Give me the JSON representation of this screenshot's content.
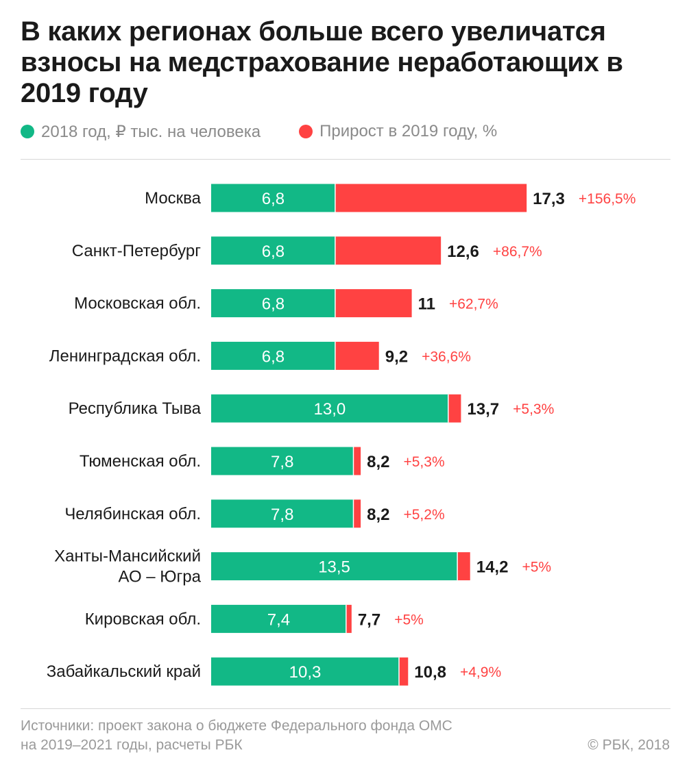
{
  "title": "В каких регионах больше всего увеличатся взносы на медстрахование неработающих в 2019 году",
  "legend": {
    "base_label": "2018 год, ₽ тыс. на человека",
    "growth_label": "Прирост в 2019 году, %"
  },
  "colors": {
    "base": "#12b886",
    "growth": "#ff4242",
    "total_text": "#1a1a1a",
    "pct_text": "#ff4242"
  },
  "chart_data": {
    "type": "bar",
    "orientation": "horizontal",
    "stacked": true,
    "categories": [
      [
        "Москва"
      ],
      [
        "Санкт-Петербург"
      ],
      [
        "Московская обл."
      ],
      [
        "Ленинградская обл."
      ],
      [
        "Республика Тыва"
      ],
      [
        "Тюменская обл."
      ],
      [
        "Челябинская обл."
      ],
      [
        "Ханты-Мансийский",
        "АО – Югра"
      ],
      [
        "Кировская обл."
      ],
      [
        "Забайкальский край"
      ]
    ],
    "series": [
      {
        "name": "2018 год, ₽ тыс. на человека",
        "values": [
          6.8,
          6.8,
          6.8,
          6.8,
          13.0,
          7.8,
          7.8,
          13.5,
          7.4,
          10.3
        ]
      },
      {
        "name": "Прирост в 2019 году, %",
        "values": [
          10.5,
          5.8,
          4.2,
          2.4,
          0.7,
          0.4,
          0.4,
          0.7,
          0.3,
          0.5
        ]
      }
    ],
    "base_labels": [
      "6,8",
      "6,8",
      "6,8",
      "6,8",
      "13,0",
      "7,8",
      "7,8",
      "13,5",
      "7,4",
      "10,3"
    ],
    "totals": [
      17.3,
      12.6,
      11,
      9.2,
      13.7,
      8.2,
      8.2,
      14.2,
      7.7,
      10.8
    ],
    "total_labels": [
      "17,3",
      "12,6",
      "11",
      "9,2",
      "13,7",
      "8,2",
      "8,2",
      "14,2",
      "7,7",
      "10,8"
    ],
    "growth_pct_labels": [
      "+156,5%",
      "+86,7%",
      "+62,7%",
      "+36,6%",
      "+5,3%",
      "+5,3%",
      "+5,2%",
      "+5%",
      "+5%",
      "+4,9%"
    ],
    "xlim": [
      0,
      17.3
    ],
    "grid": false,
    "legend_position": "top-left"
  },
  "footer": {
    "source_line1": "Источники: проект закона о бюджете Федерального фонда ОМС",
    "source_line2": "на 2019–2021 годы, расчеты РБК",
    "copyright": "© РБК, 2018"
  }
}
